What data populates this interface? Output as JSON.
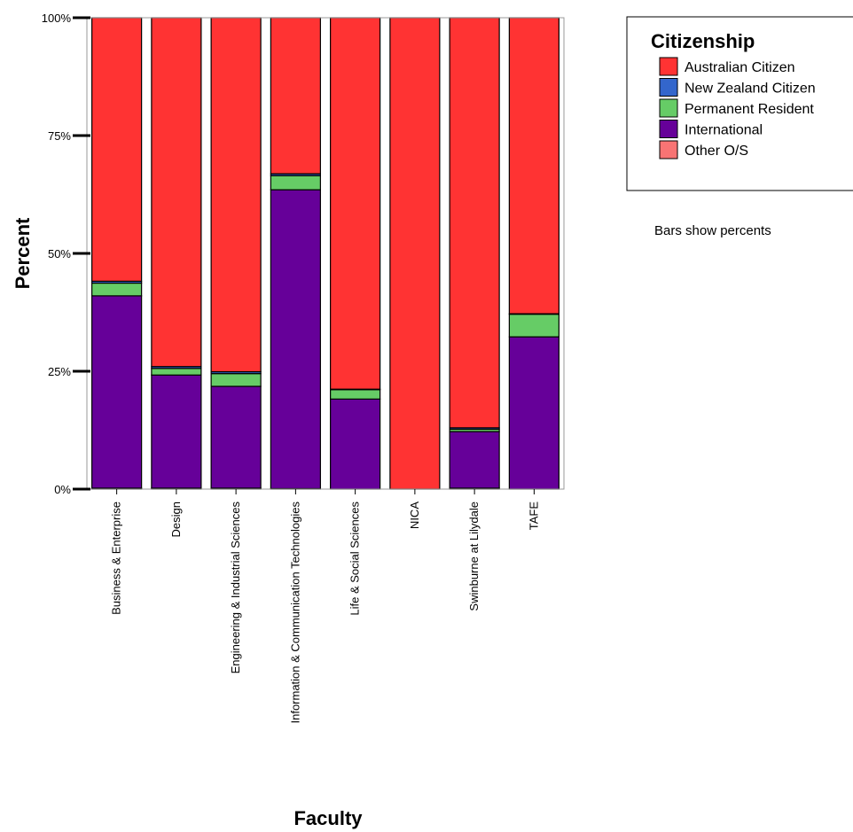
{
  "chart_data": {
    "type": "bar",
    "stacked": true,
    "percent": true,
    "title": "",
    "xlabel": "Faculty",
    "ylabel": "Percent",
    "ylim": [
      0,
      100
    ],
    "yticks": [
      "0%",
      "25%",
      "50%",
      "75%",
      "100%"
    ],
    "ytick_values": [
      0,
      25,
      50,
      75,
      100
    ],
    "categories": [
      "Business & Enterprise",
      "Design",
      "Engineering & Industrial Sciences",
      "Information & Communication Technologies",
      "Life & Social Sciences",
      "NICA",
      "Swinburne at Lilydale",
      "TAFE"
    ],
    "series": [
      {
        "name": "Other O/S",
        "color": "#f87474",
        "values": [
          0.2,
          0.2,
          0.2,
          0.1,
          0.0,
          0.0,
          0.2,
          0.0
        ]
      },
      {
        "name": "International",
        "color": "#660099",
        "values": [
          40.8,
          24.0,
          21.6,
          63.4,
          19.1,
          0.0,
          12.0,
          32.3
        ]
      },
      {
        "name": "Permanent Resident",
        "color": "#66cc66",
        "values": [
          2.7,
          1.4,
          2.7,
          3.0,
          2.0,
          0.0,
          0.5,
          4.8
        ]
      },
      {
        "name": "New Zealand Citizen",
        "color": "#3366cc",
        "values": [
          0.4,
          0.4,
          0.4,
          0.4,
          0.1,
          0.0,
          0.3,
          0.1
        ]
      },
      {
        "name": "Australian Citizen",
        "color": "#ff3333",
        "values": [
          55.9,
          74.0,
          75.1,
          33.1,
          78.8,
          100.0,
          87.0,
          62.8
        ]
      }
    ],
    "legend": {
      "title": "Citizenship",
      "placement": "top-right",
      "entries": [
        "Australian Citizen",
        "New Zealand Citizen",
        "Permanent Resident",
        "International",
        "Other O/S"
      ]
    },
    "note": "Bars show percents",
    "grid": false
  }
}
